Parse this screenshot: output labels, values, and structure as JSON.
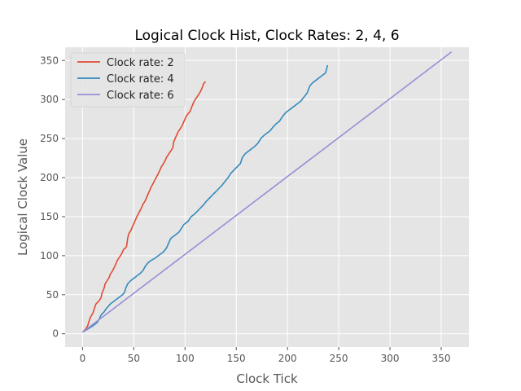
{
  "chart_data": {
    "type": "line",
    "title": "Logical Clock Hist, Clock Rates: 2, 4, 6",
    "xlabel": "Clock Tick",
    "ylabel": "Logical Clock Value",
    "xlim": [
      -17,
      377
    ],
    "ylim": [
      -17,
      367
    ],
    "xticks": [
      0,
      50,
      100,
      150,
      200,
      250,
      300,
      350
    ],
    "yticks": [
      0,
      50,
      100,
      150,
      200,
      250,
      300,
      350
    ],
    "grid": true,
    "legend_position": "top-left",
    "series": [
      {
        "name": "Clock rate: 2",
        "color": "#e24a33",
        "points": [
          [
            0,
            2
          ],
          [
            3,
            6
          ],
          [
            5,
            10
          ],
          [
            6,
            15
          ],
          [
            8,
            22
          ],
          [
            10,
            26
          ],
          [
            12,
            34
          ],
          [
            13,
            38
          ],
          [
            16,
            42
          ],
          [
            18,
            46
          ],
          [
            19,
            52
          ],
          [
            21,
            58
          ],
          [
            22,
            64
          ],
          [
            24,
            68
          ],
          [
            26,
            72
          ],
          [
            27,
            76
          ],
          [
            29,
            80
          ],
          [
            31,
            85
          ],
          [
            32,
            88
          ],
          [
            34,
            94
          ],
          [
            36,
            98
          ],
          [
            38,
            102
          ],
          [
            40,
            108
          ],
          [
            42,
            110
          ],
          [
            43,
            112
          ],
          [
            44,
            122
          ],
          [
            45,
            128
          ],
          [
            47,
            132
          ],
          [
            49,
            138
          ],
          [
            51,
            144
          ],
          [
            53,
            150
          ],
          [
            55,
            155
          ],
          [
            57,
            160
          ],
          [
            59,
            166
          ],
          [
            61,
            170
          ],
          [
            63,
            176
          ],
          [
            65,
            182
          ],
          [
            67,
            188
          ],
          [
            69,
            193
          ],
          [
            71,
            198
          ],
          [
            73,
            203
          ],
          [
            75,
            208
          ],
          [
            77,
            214
          ],
          [
            79,
            218
          ],
          [
            81,
            223
          ],
          [
            82,
            226
          ],
          [
            84,
            230
          ],
          [
            86,
            234
          ],
          [
            88,
            238
          ],
          [
            89,
            246
          ],
          [
            91,
            252
          ],
          [
            93,
            258
          ],
          [
            95,
            262
          ],
          [
            97,
            266
          ],
          [
            99,
            272
          ],
          [
            101,
            278
          ],
          [
            103,
            282
          ],
          [
            105,
            285
          ],
          [
            107,
            292
          ],
          [
            109,
            298
          ],
          [
            111,
            302
          ],
          [
            113,
            306
          ],
          [
            115,
            310
          ],
          [
            117,
            316
          ],
          [
            118,
            320
          ],
          [
            120,
            323
          ]
        ]
      },
      {
        "name": "Clock rate: 4",
        "color": "#348abd",
        "points": [
          [
            0,
            2
          ],
          [
            5,
            6
          ],
          [
            10,
            10
          ],
          [
            14,
            14
          ],
          [
            16,
            18
          ],
          [
            18,
            24
          ],
          [
            21,
            28
          ],
          [
            23,
            32
          ],
          [
            25,
            35
          ],
          [
            27,
            38
          ],
          [
            30,
            41
          ],
          [
            33,
            44
          ],
          [
            36,
            47
          ],
          [
            39,
            50
          ],
          [
            41,
            53
          ],
          [
            42,
            58
          ],
          [
            44,
            64
          ],
          [
            47,
            68
          ],
          [
            50,
            71
          ],
          [
            53,
            74
          ],
          [
            56,
            77
          ],
          [
            59,
            81
          ],
          [
            61,
            86
          ],
          [
            64,
            91
          ],
          [
            67,
            94
          ],
          [
            71,
            97
          ],
          [
            75,
            101
          ],
          [
            79,
            105
          ],
          [
            82,
            110
          ],
          [
            84,
            116
          ],
          [
            86,
            122
          ],
          [
            90,
            126
          ],
          [
            94,
            130
          ],
          [
            97,
            136
          ],
          [
            99,
            140
          ],
          [
            103,
            144
          ],
          [
            106,
            150
          ],
          [
            109,
            153
          ],
          [
            112,
            157
          ],
          [
            115,
            161
          ],
          [
            118,
            165
          ],
          [
            121,
            170
          ],
          [
            124,
            174
          ],
          [
            127,
            178
          ],
          [
            130,
            182
          ],
          [
            133,
            186
          ],
          [
            136,
            190
          ],
          [
            139,
            195
          ],
          [
            142,
            200
          ],
          [
            145,
            206
          ],
          [
            148,
            210
          ],
          [
            151,
            214
          ],
          [
            154,
            218
          ],
          [
            156,
            226
          ],
          [
            159,
            231
          ],
          [
            162,
            234
          ],
          [
            165,
            237
          ],
          [
            168,
            240
          ],
          [
            171,
            244
          ],
          [
            174,
            250
          ],
          [
            177,
            254
          ],
          [
            180,
            257
          ],
          [
            183,
            260
          ],
          [
            186,
            265
          ],
          [
            189,
            269
          ],
          [
            192,
            272
          ],
          [
            195,
            278
          ],
          [
            198,
            283
          ],
          [
            201,
            286
          ],
          [
            204,
            289
          ],
          [
            207,
            292
          ],
          [
            210,
            295
          ],
          [
            213,
            298
          ],
          [
            216,
            303
          ],
          [
            219,
            308
          ],
          [
            222,
            318
          ],
          [
            225,
            322
          ],
          [
            228,
            325
          ],
          [
            231,
            328
          ],
          [
            234,
            331
          ],
          [
            237,
            334
          ],
          [
            238,
            338
          ],
          [
            239,
            344
          ]
        ]
      },
      {
        "name": "Clock rate: 6",
        "color": "#988ed5",
        "points": [
          [
            0,
            2
          ],
          [
            360,
            361
          ]
        ]
      }
    ]
  }
}
